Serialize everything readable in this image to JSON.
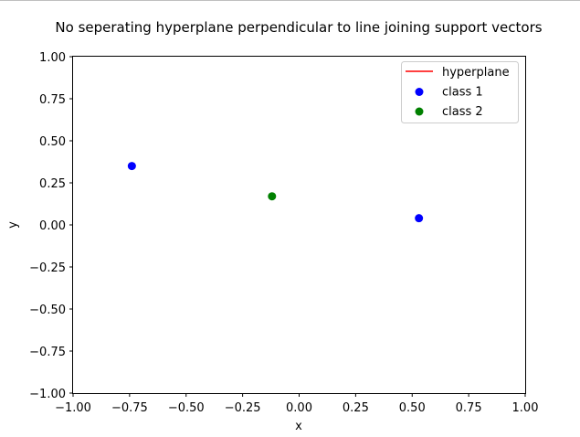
{
  "chart_data": {
    "type": "scatter",
    "title": "No seperating hyperplane perpendicular to line joining support vectors",
    "xlabel": "x",
    "ylabel": "y",
    "xlim": [
      -1.0,
      1.0
    ],
    "ylim": [
      -1.0,
      1.0
    ],
    "xticks": [
      "−1.00",
      "−0.75",
      "−0.50",
      "−0.25",
      "0.00",
      "0.25",
      "0.50",
      "0.75",
      "1.00"
    ],
    "yticks": [
      "−1.00",
      "−0.75",
      "−0.50",
      "−0.25",
      "0.00",
      "0.25",
      "0.50",
      "0.75",
      "1.00"
    ],
    "grid": false,
    "legend_position": "top-right",
    "series": [
      {
        "name": "hyperplane",
        "kind": "line",
        "color": "#ff0000",
        "x": [],
        "y": []
      },
      {
        "name": "class 1",
        "kind": "scatter",
        "color": "#0000ff",
        "x": [
          -0.74,
          0.53
        ],
        "y": [
          0.35,
          0.04
        ]
      },
      {
        "name": "class 2",
        "kind": "scatter",
        "color": "#008000",
        "x": [
          -0.12
        ],
        "y": [
          0.17
        ]
      }
    ]
  }
}
